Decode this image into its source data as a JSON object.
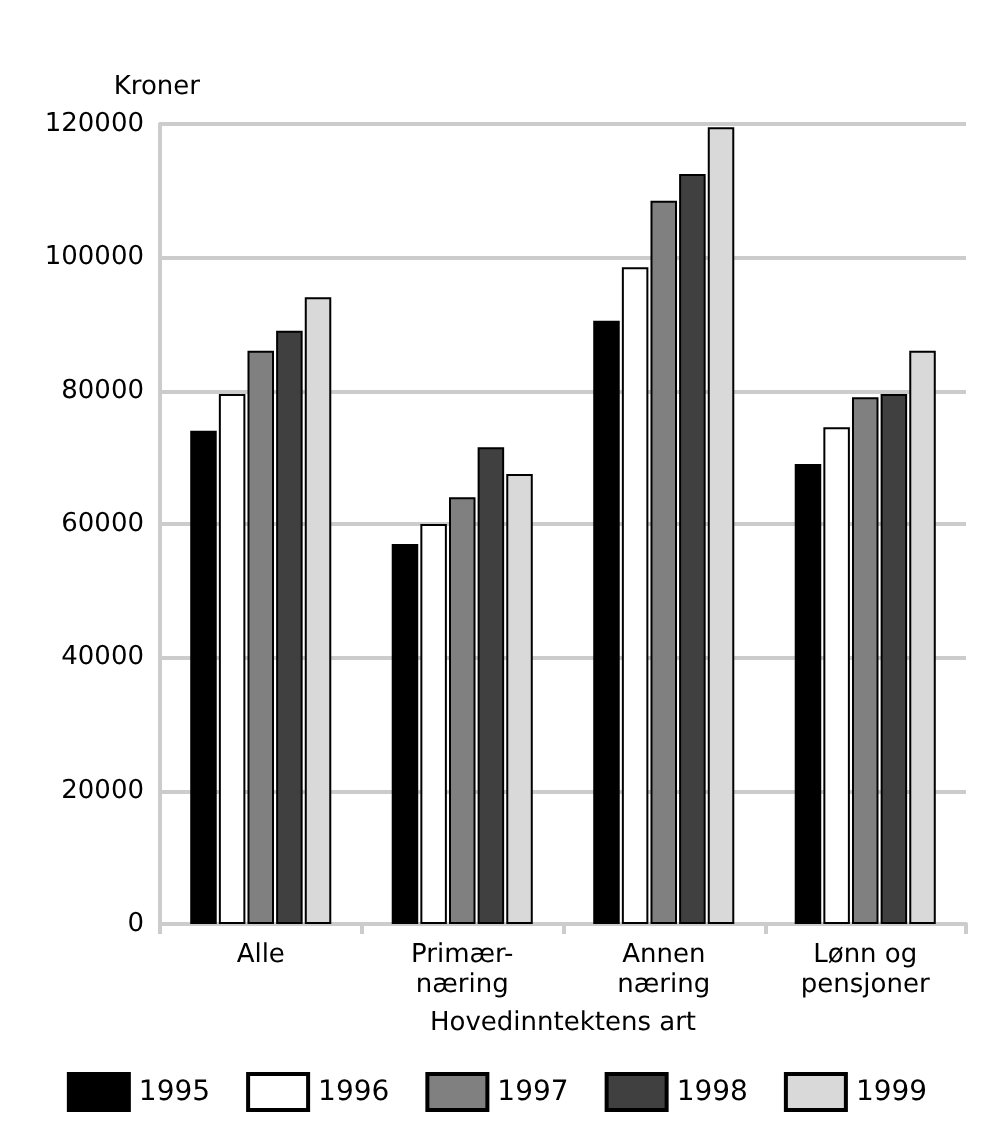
{
  "chart_data": {
    "type": "bar",
    "ylabel": "Kroner",
    "xlabel": "Hovedinntektens art",
    "categories": [
      "Alle",
      "Primær-\nnæring",
      "Annen\nnæring",
      "Lønn og\npensjoner"
    ],
    "series": [
      {
        "name": "1995",
        "color": "#000000",
        "values": [
          74000,
          57000,
          90500,
          69000
        ]
      },
      {
        "name": "1996",
        "color": "#ffffff",
        "values": [
          79500,
          60000,
          98500,
          74500
        ]
      },
      {
        "name": "1997",
        "color": "#808080",
        "values": [
          86000,
          64000,
          108500,
          79000
        ]
      },
      {
        "name": "1998",
        "color": "#404040",
        "values": [
          89000,
          71500,
          112500,
          79500
        ]
      },
      {
        "name": "1999",
        "color": "#d9d9d9",
        "values": [
          94000,
          67500,
          119500,
          86000
        ]
      }
    ],
    "ylim": [
      0,
      120000
    ],
    "yticks": [
      0,
      20000,
      40000,
      60000,
      80000,
      100000,
      120000
    ],
    "grid": "y",
    "legend": "bottom"
  }
}
